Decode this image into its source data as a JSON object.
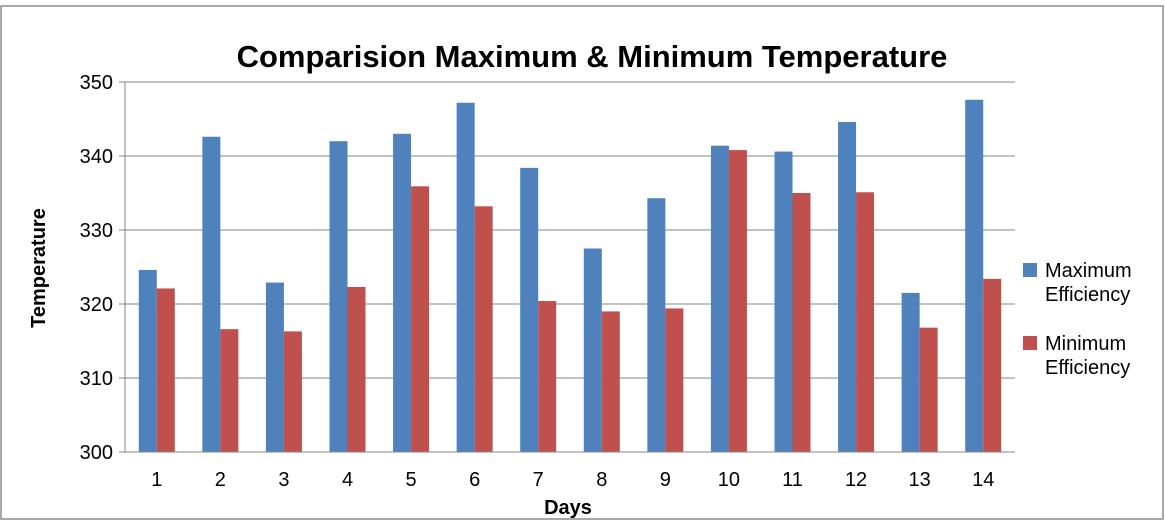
{
  "chart_data": {
    "type": "bar",
    "title": "Comparision Maximum & Minimum Temperature",
    "xlabel": "Days",
    "ylabel": "Temperature",
    "ylim": [
      300,
      350
    ],
    "yticks": [
      300,
      310,
      320,
      330,
      340,
      350
    ],
    "grid": true,
    "legend_position": "right",
    "categories": [
      "1",
      "2",
      "3",
      "4",
      "5",
      "6",
      "7",
      "8",
      "9",
      "10",
      "11",
      "12",
      "13",
      "14"
    ],
    "series": [
      {
        "name": "Maximum Efficiency",
        "legend_lines": [
          "Maximum",
          "Efficiency"
        ],
        "color": "#4F81BD",
        "values": [
          324.6,
          342.6,
          322.9,
          342.0,
          343.0,
          347.2,
          338.4,
          327.5,
          334.3,
          341.4,
          340.6,
          344.6,
          321.5,
          347.6
        ]
      },
      {
        "name": "Minimum Efficiency",
        "legend_lines": [
          "Minimum",
          "Efficiency"
        ],
        "color": "#C0504D",
        "values": [
          322.1,
          316.6,
          316.3,
          322.3,
          335.9,
          333.2,
          320.4,
          319.0,
          319.4,
          340.8,
          335.0,
          335.1,
          316.8,
          323.4
        ]
      }
    ]
  }
}
